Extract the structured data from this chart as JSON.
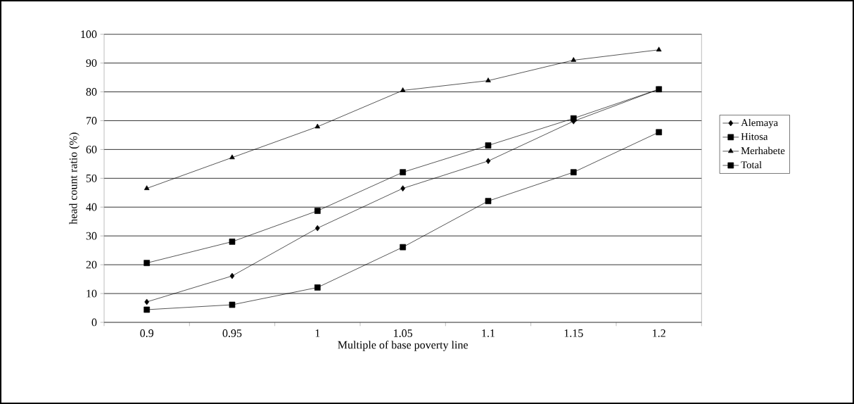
{
  "chart_data": {
    "type": "line",
    "xlabel": "Multiple of base poverty line",
    "ylabel": "head count ratio (%)",
    "categories": [
      "0.9",
      "0.95",
      "1",
      "1.05",
      "1.1",
      "1.15",
      "1.2"
    ],
    "series": [
      {
        "name": "Alemaya",
        "color": "#000000",
        "marker": "diamond",
        "values": [
          7.1,
          16.1,
          32.7,
          46.5,
          56.0,
          69.8,
          80.9
        ]
      },
      {
        "name": "Hitosa",
        "color": "#000000",
        "marker": "square",
        "values": [
          4.4,
          6.1,
          12.1,
          26.1,
          42.1,
          52.1,
          66.0
        ]
      },
      {
        "name": "Merhabete",
        "color": "#000000",
        "marker": "triangle",
        "values": [
          46.5,
          57.2,
          67.9,
          80.5,
          83.9,
          91.0,
          94.6
        ]
      },
      {
        "name": "Total",
        "color": "#000000",
        "marker": "square",
        "values": [
          20.6,
          28.0,
          38.7,
          52.1,
          61.4,
          70.8,
          80.9
        ]
      }
    ],
    "ylim": [
      0,
      100
    ],
    "yticks": [
      0,
      10,
      20,
      30,
      40,
      50,
      60,
      70,
      80,
      90,
      100
    ],
    "grid": "y",
    "legend": "right",
    "line_style": "solid"
  }
}
